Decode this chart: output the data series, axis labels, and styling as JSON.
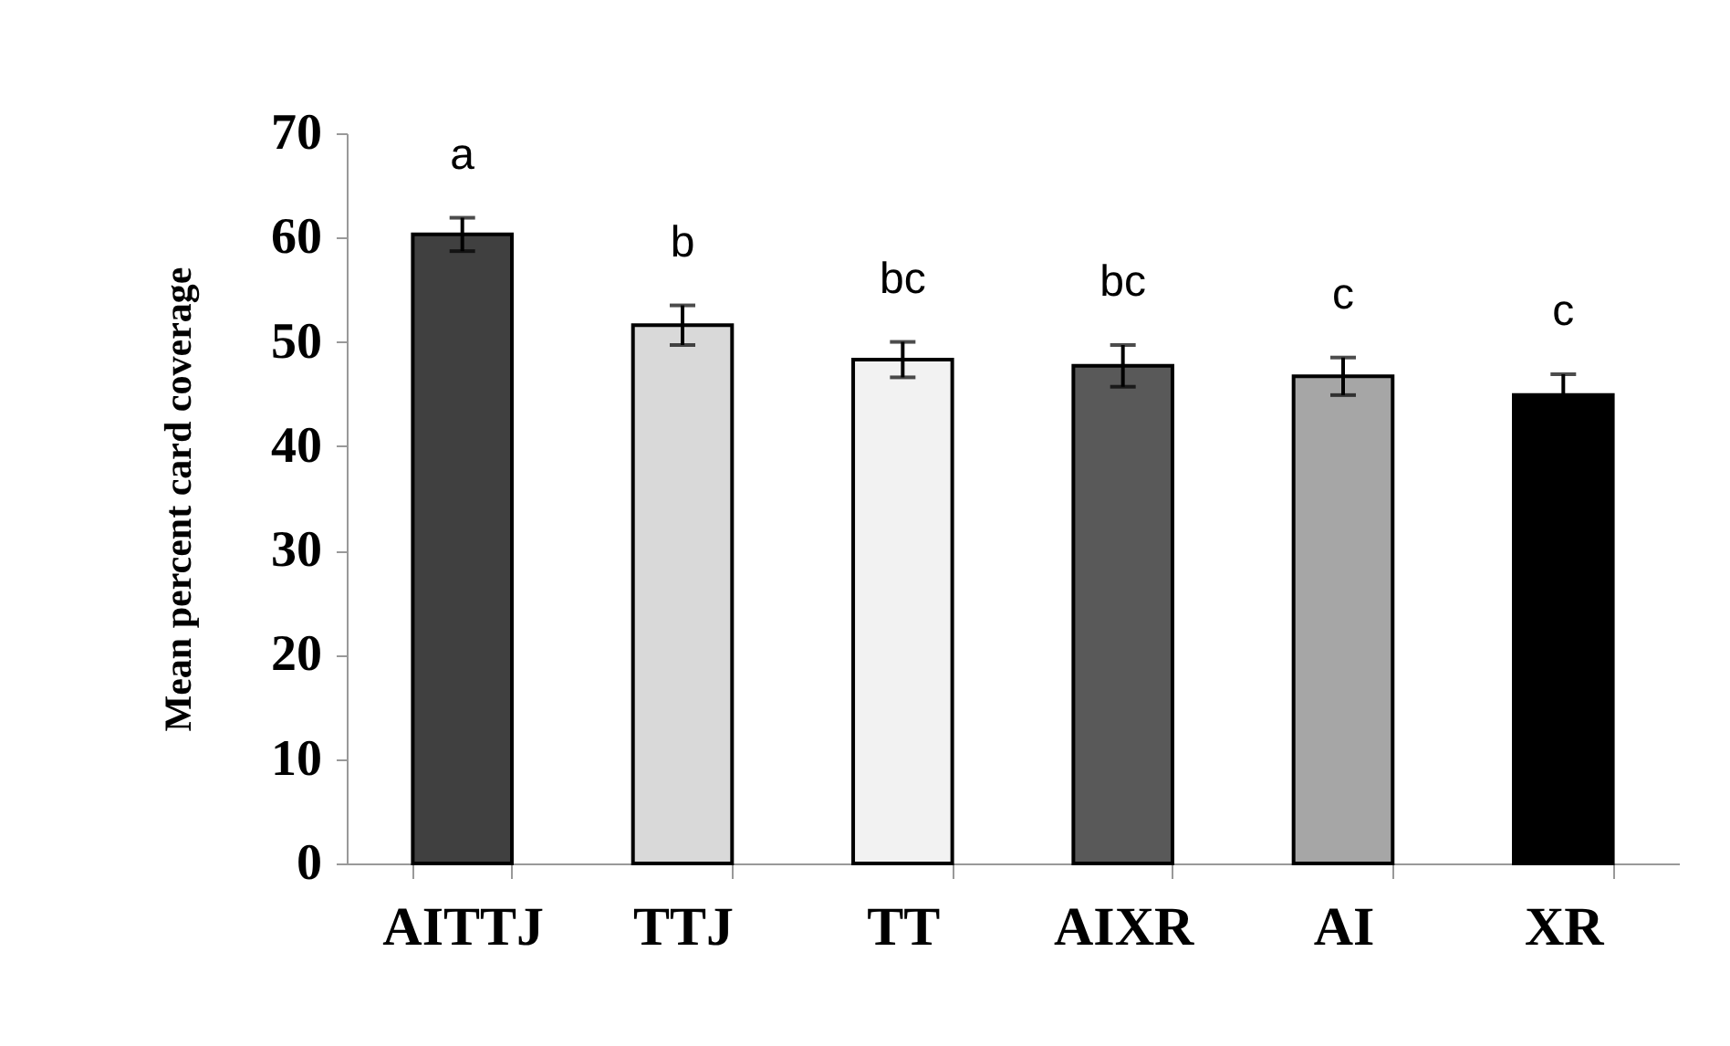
{
  "chart_data": {
    "type": "bar",
    "ylabel": "Mean percent card coverage",
    "categories": [
      "AITTJ",
      "TTJ",
      "TT",
      "AIXR",
      "AI",
      "XR"
    ],
    "values": [
      60.3,
      51.6,
      48.3,
      47.7,
      46.7,
      44.9
    ],
    "errors": [
      1.6,
      1.9,
      1.7,
      2.0,
      1.8,
      2.0
    ],
    "colors": [
      "#404040",
      "#d9d9d9",
      "#f2f2f2",
      "#595959",
      "#a6a6a6",
      "#000000"
    ],
    "ylim": [
      0,
      70
    ],
    "yticks": [
      0,
      10,
      20,
      30,
      40,
      50,
      60,
      70
    ],
    "grid": false,
    "annotations": [
      "a",
      "b",
      "bc",
      "bc",
      "c",
      "c"
    ]
  }
}
